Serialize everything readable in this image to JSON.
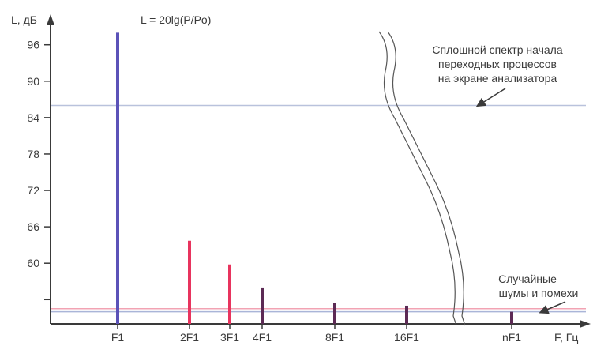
{
  "chart_data": {
    "type": "bar",
    "title": "",
    "formula": "L = 20lg(P/Po)",
    "ylabel": "L, дБ",
    "xlabel": "F, Гц",
    "ylim": [
      50,
      100
    ],
    "yticks": [
      96,
      90,
      84,
      78,
      72,
      66,
      60
    ],
    "categories": [
      "F1",
      "2F1",
      "3F1",
      "4F1",
      "8F1",
      "16F1",
      "nF1"
    ],
    "values": [
      98,
      63.7,
      59.8,
      56,
      53.5,
      53,
      52
    ],
    "bar_colors": [
      "#5b52b8",
      "#e8345e",
      "#e8345e",
      "#5c2a55",
      "#5c2a55",
      "#5c2a55",
      "#5c2a55"
    ],
    "continuous_spectrum_level": 86,
    "noise_levels": [
      52.5,
      52.0
    ],
    "noise_colors": [
      "#f2a3b3",
      "#aab5d8"
    ],
    "spectrum_line_color": "#b9c2dc",
    "annotations": {
      "continuous_spectrum": [
        "Сплошной спектр начала",
        "переходных процессов",
        "на экране анализатора"
      ],
      "noise": [
        "Случайные",
        "шумы и помехи"
      ]
    },
    "grid": false
  }
}
